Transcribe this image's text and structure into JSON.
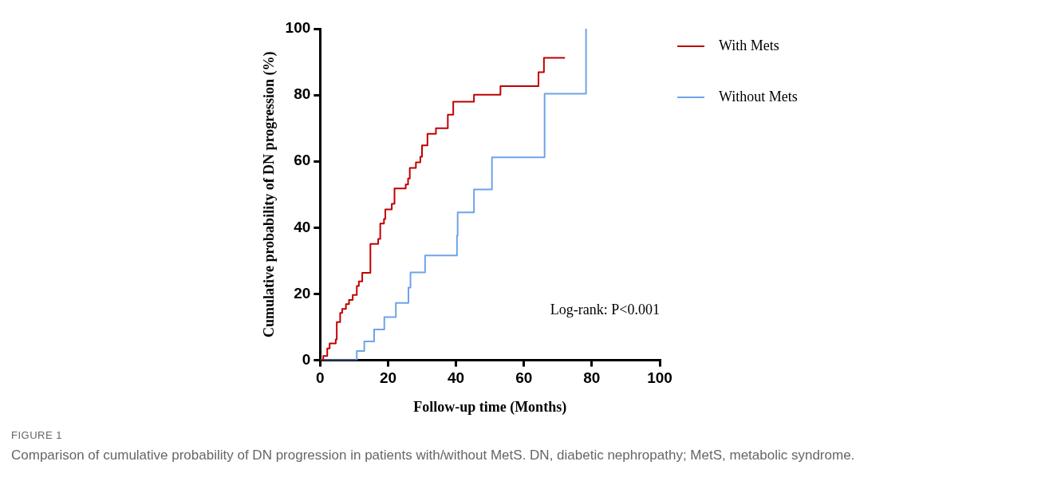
{
  "chart_data": {
    "type": "step",
    "xlabel": "Follow-up time (Months)",
    "ylabel": "Cumulative probability of DN progression (%)",
    "xlim": [
      0,
      100
    ],
    "xticks": [
      0,
      20,
      40,
      60,
      80,
      100
    ],
    "ylim": [
      0,
      100
    ],
    "yticks": [
      0,
      20,
      40,
      60,
      80,
      100
    ],
    "grid": false,
    "legend": "top right",
    "annotations": [
      "Log-rank: P<0.001",
      "FIGURE 1",
      "Comparison of cumulative probability of DN progression in patients with/without MetS. DN, diabetic nephropathy; MetS, metabolic syndrome."
    ],
    "series": [
      {
        "name": "With Mets",
        "color": "#c00000",
        "x": [
          0,
          0.9,
          2.1,
          2.8,
          4.6,
          4.9,
          5.9,
          6.5,
          7.6,
          8.5,
          9.6,
          10.8,
          11.4,
          12.4,
          14.8,
          17.1,
          17.7,
          18.8,
          19.2,
          21.1,
          21.9,
          25.2,
          25.9,
          26.4,
          28.2,
          29.5,
          30.0,
          31.6,
          34.1,
          37.6,
          39.2,
          45.3,
          53.1,
          64.3,
          65.9,
          72.1
        ],
        "values": [
          0,
          1.3,
          3.6,
          5.1,
          6.3,
          11.5,
          14.3,
          15.5,
          16.9,
          18.2,
          19.7,
          22.4,
          23.8,
          26.4,
          35.1,
          36.6,
          41.2,
          42.6,
          45.5,
          47.2,
          51.8,
          53.0,
          54.8,
          58.0,
          59.7,
          61.4,
          64.8,
          68.3,
          70.0,
          74.1,
          78.0,
          80.1,
          82.7,
          86.9,
          91.2,
          91.2
        ]
      },
      {
        "name": "Without Mets",
        "color": "#6fa3e8",
        "x": [
          0,
          10.8,
          13.0,
          15.9,
          18.9,
          22.3,
          26.0,
          26.6,
          30.9,
          40.3,
          40.5,
          45.3,
          50.6,
          66.1,
          78.3
        ],
        "values": [
          0,
          2.8,
          5.7,
          9.3,
          13.0,
          17.3,
          21.9,
          26.5,
          31.6,
          37.6,
          44.6,
          51.5,
          61.2,
          80.4,
          100
        ]
      }
    ]
  }
}
